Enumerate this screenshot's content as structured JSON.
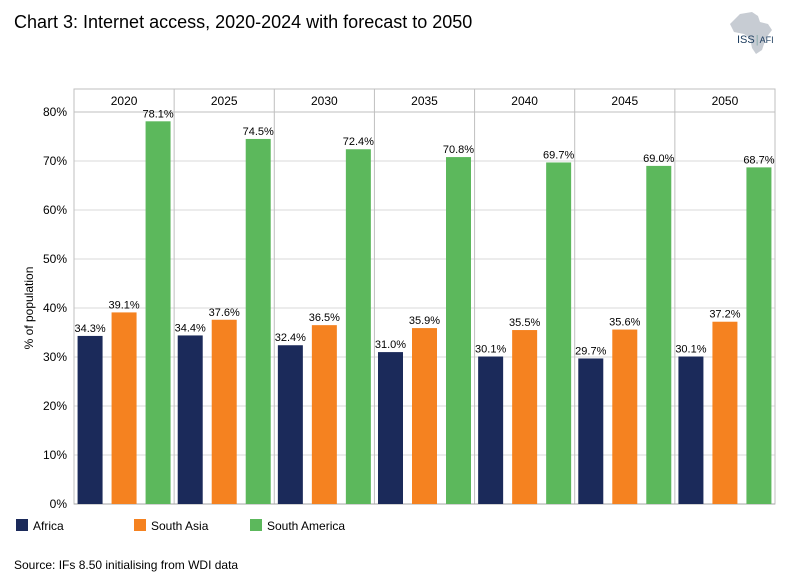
{
  "title": "Chart 3: Internet access, 2020-2024 with forecast to 2050",
  "source": "Source: IFs 8.50 initialising from WDI data",
  "logo": {
    "main": "ISS",
    "sub": "AFI"
  },
  "chart_data": {
    "type": "bar",
    "categories": [
      "2020",
      "2025",
      "2030",
      "2035",
      "2040",
      "2045",
      "2050"
    ],
    "series": [
      {
        "name": "Africa",
        "color": "#1b2a5a",
        "values": [
          34.3,
          34.4,
          32.4,
          31.0,
          30.1,
          29.7,
          30.1
        ]
      },
      {
        "name": "South Asia",
        "color": "#f58220",
        "values": [
          39.1,
          37.6,
          36.5,
          35.9,
          35.5,
          35.6,
          37.2
        ]
      },
      {
        "name": "South America",
        "color": "#5cb85c",
        "values": [
          78.1,
          74.5,
          72.4,
          70.8,
          69.7,
          69.0,
          68.7
        ]
      }
    ],
    "ylabel": "% of population",
    "ylim": [
      0,
      80
    ],
    "yticks": [
      "0%",
      "10%",
      "20%",
      "30%",
      "40%",
      "50%",
      "60%",
      "70%",
      "80%"
    ],
    "data_labels": [
      [
        "34.3%",
        "34.4%",
        "32.4%",
        "31.0%",
        "30.1%",
        "29.7%",
        "30.1%"
      ],
      [
        "39.1%",
        "37.6%",
        "36.5%",
        "35.9%",
        "35.5%",
        "35.6%",
        "37.2%"
      ],
      [
        "78.1%",
        "74.5%",
        "72.4%",
        "70.8%",
        "69.7%",
        "69.0%",
        "68.7%"
      ]
    ],
    "grid": true,
    "legend_position": "bottom-left",
    "category_labels_position": "top"
  }
}
